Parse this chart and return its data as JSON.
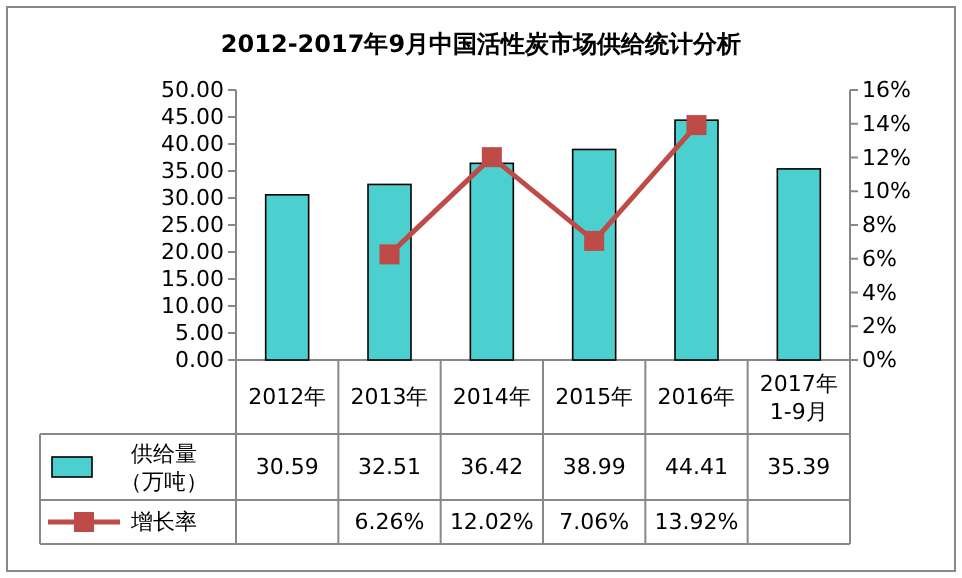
{
  "chart_data": {
    "type": "bar",
    "title": "2012-2017年9月中国活性炭市场供给统计分析",
    "categories": [
      "2012年",
      "2013年",
      "2014年",
      "2015年",
      "2016年",
      "2017年1-9月"
    ],
    "series": [
      {
        "name": "供给量（万吨）",
        "color": "#4bcfcf",
        "values": [
          30.59,
          32.51,
          36.42,
          38.99,
          44.41,
          35.39
        ],
        "value_labels": [
          "30.59",
          "32.51",
          "36.42",
          "38.99",
          "44.41",
          "35.39"
        ]
      },
      {
        "name": "增长率",
        "type": "line",
        "axis": "y2",
        "color": "#be4b48",
        "marker": "square",
        "values": [
          null,
          6.26,
          12.02,
          7.06,
          13.92,
          null
        ],
        "value_labels": [
          null,
          "6.26%",
          "12.02%",
          "7.06%",
          "13.92%",
          null
        ]
      }
    ],
    "ylim": [
      0,
      50
    ],
    "yticks": [
      {
        "value": 0,
        "label": "0.00"
      },
      {
        "value": 5,
        "label": "5.00"
      },
      {
        "value": 10,
        "label": "10.00"
      },
      {
        "value": 15,
        "label": "15.00"
      },
      {
        "value": 20,
        "label": "20.00"
      },
      {
        "value": 25,
        "label": "25.00"
      },
      {
        "value": 30,
        "label": "30.00"
      },
      {
        "value": 35,
        "label": "35.00"
      },
      {
        "value": 40,
        "label": "40.00"
      },
      {
        "value": 45,
        "label": "45.00"
      },
      {
        "value": 50,
        "label": "50.00"
      }
    ],
    "y2lim": [
      0,
      16
    ],
    "y2ticks": [
      {
        "value": 0,
        "label": "0%"
      },
      {
        "value": 2,
        "label": "2%"
      },
      {
        "value": 4,
        "label": "4%"
      },
      {
        "value": 6,
        "label": "6%"
      },
      {
        "value": 8,
        "label": "8%"
      },
      {
        "value": 10,
        "label": "10%"
      },
      {
        "value": 12,
        "label": "12%"
      },
      {
        "value": 14,
        "label": "14%"
      },
      {
        "value": 16,
        "label": "16%"
      }
    ],
    "legend": "bottom"
  }
}
